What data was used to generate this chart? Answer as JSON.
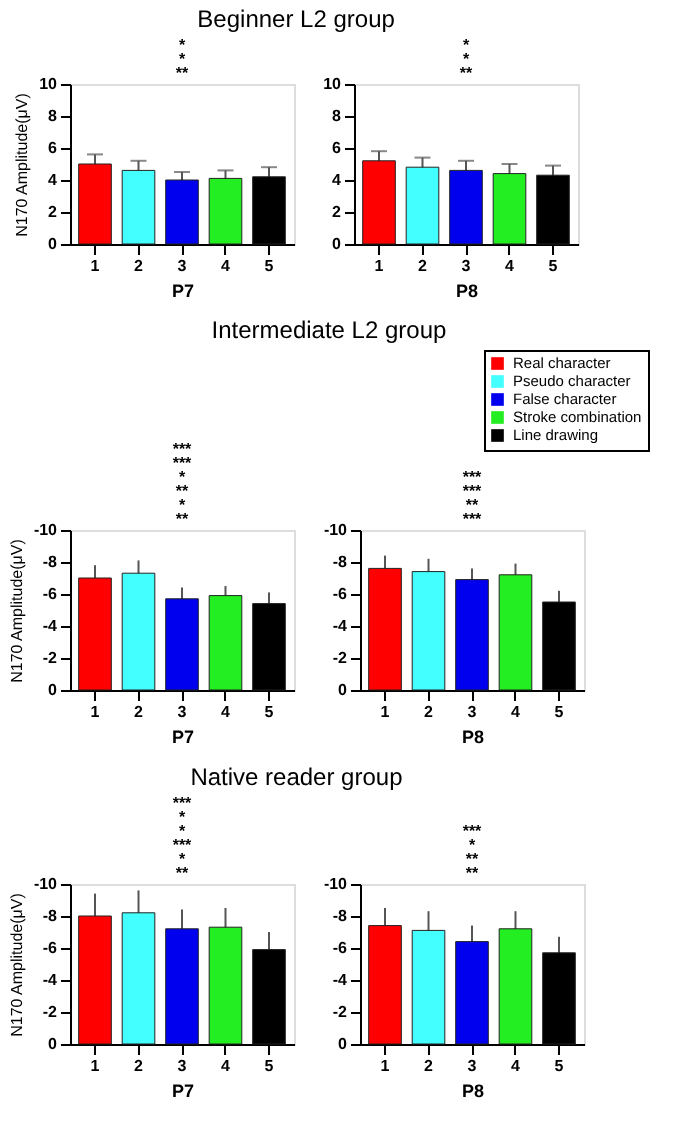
{
  "chart_data": [
    {
      "type": "bar",
      "title": "Beginner L2 group",
      "ylabel": "N170 Amplitude(μV)",
      "xlabel": "P7",
      "categories": [
        "1",
        "2",
        "3",
        "4",
        "5"
      ],
      "values": [
        5.0,
        4.6,
        4.0,
        4.1,
        4.2
      ],
      "errors": [
        0.6,
        0.6,
        0.5,
        0.5,
        0.6
      ],
      "colors": [
        "#ff0000",
        "#44ffff",
        "#0000ee",
        "#22ee22",
        "#000000"
      ],
      "ylim": [
        0,
        10
      ],
      "yticks": [
        0,
        2,
        4,
        6,
        8,
        10
      ],
      "annotations": [
        "**",
        "*",
        "*"
      ]
    },
    {
      "type": "bar",
      "xlabel": "P8",
      "categories": [
        "1",
        "2",
        "3",
        "4",
        "5"
      ],
      "values": [
        5.2,
        4.8,
        4.6,
        4.4,
        4.3
      ],
      "errors": [
        0.6,
        0.6,
        0.6,
        0.6,
        0.6
      ],
      "colors": [
        "#ff0000",
        "#44ffff",
        "#0000ee",
        "#22ee22",
        "#000000"
      ],
      "ylim": [
        0,
        10
      ],
      "yticks": [
        0,
        2,
        4,
        6,
        8,
        10
      ],
      "annotations": [
        "**",
        "*",
        "*"
      ]
    },
    {
      "type": "bar",
      "title": "Intermediate L2 group",
      "ylabel": "N170 Amplitude(μV)",
      "xlabel": "P7",
      "categories": [
        "1",
        "2",
        "3",
        "4",
        "5"
      ],
      "values": [
        -7.0,
        -7.3,
        -5.7,
        -5.9,
        -5.4
      ],
      "errors": [
        0.8,
        0.8,
        0.7,
        0.6,
        0.7
      ],
      "colors": [
        "#ff0000",
        "#44ffff",
        "#0000ee",
        "#22ee22",
        "#000000"
      ],
      "ylim": [
        0,
        -10
      ],
      "yticks": [
        0,
        -2,
        -4,
        -6,
        -8,
        -10
      ],
      "annotations": [
        "**",
        "*",
        "**",
        "*",
        "***",
        "***"
      ]
    },
    {
      "type": "bar",
      "xlabel": "P8",
      "categories": [
        "1",
        "2",
        "3",
        "4",
        "5"
      ],
      "ylim": [
        0,
        -10
      ],
      "yticks": [
        0,
        -2,
        -4,
        -6,
        -8,
        -10
      ],
      "legend": "top right",
      "series": [
        {
          "name": "Real character",
          "color": "#ff0000",
          "values": [
            -7.6,
            null,
            null,
            null,
            null
          ],
          "errors": [
            0.8,
            null,
            null,
            null,
            null
          ]
        },
        {
          "name": "Pseudo character",
          "color": "#44ffff",
          "values": [
            null,
            -7.4,
            null,
            null,
            null
          ],
          "errors": [
            null,
            0.8,
            null,
            null,
            null
          ]
        },
        {
          "name": "False character",
          "color": "#0000ee",
          "values": [
            null,
            null,
            -6.9,
            null,
            null
          ],
          "errors": [
            null,
            null,
            0.7,
            null,
            null
          ]
        },
        {
          "name": "Stroke combination",
          "color": "#22ee22",
          "values": [
            null,
            null,
            null,
            -7.2,
            null
          ],
          "errors": [
            null,
            null,
            null,
            0.7,
            null
          ]
        },
        {
          "name": "Line drawing",
          "color": "#000000",
          "values": [
            null,
            null,
            null,
            null,
            -5.5
          ],
          "errors": [
            null,
            null,
            null,
            null,
            0.7
          ]
        }
      ],
      "annotations": [
        "***",
        "**",
        "***",
        "***"
      ]
    },
    {
      "type": "bar",
      "title": "Native reader group",
      "ylabel": "N170 Amplitude(μV)",
      "xlabel": "P7",
      "categories": [
        "1",
        "2",
        "3",
        "4",
        "5"
      ],
      "values": [
        -8.0,
        -8.2,
        -7.2,
        -7.3,
        -5.9
      ],
      "errors": [
        1.4,
        1.4,
        1.2,
        1.2,
        1.1
      ],
      "colors": [
        "#ff0000",
        "#44ffff",
        "#0000ee",
        "#22ee22",
        "#000000"
      ],
      "ylim": [
        0,
        -10
      ],
      "yticks": [
        0,
        -2,
        -4,
        -6,
        -8,
        -10
      ],
      "annotations": [
        "**",
        "*",
        "***",
        "*",
        "*",
        "***"
      ]
    },
    {
      "type": "bar",
      "xlabel": "P8",
      "categories": [
        "1",
        "2",
        "3",
        "4",
        "5"
      ],
      "values": [
        -7.4,
        -7.1,
        -6.4,
        -7.2,
        -5.7
      ],
      "errors": [
        1.1,
        1.2,
        1.0,
        1.1,
        1.0
      ],
      "colors": [
        "#ff0000",
        "#44ffff",
        "#0000ee",
        "#22ee22",
        "#000000"
      ],
      "ylim": [
        0,
        -10
      ],
      "yticks": [
        0,
        -2,
        -4,
        -6,
        -8,
        -10
      ],
      "annotations": [
        "**",
        "**",
        "*",
        "***"
      ]
    }
  ]
}
